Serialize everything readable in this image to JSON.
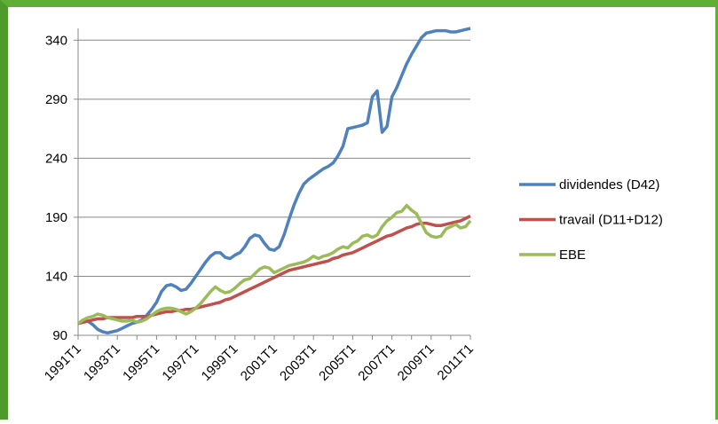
{
  "chart_data": {
    "type": "line",
    "categories": [
      "1991T1",
      null,
      null,
      null,
      null,
      null,
      null,
      null,
      "1993T1",
      null,
      null,
      null,
      null,
      null,
      null,
      null,
      "1995T1",
      null,
      null,
      null,
      null,
      null,
      null,
      null,
      "1997T1",
      null,
      null,
      null,
      null,
      null,
      null,
      null,
      "1999T1",
      null,
      null,
      null,
      null,
      null,
      null,
      null,
      "2001T1",
      null,
      null,
      null,
      null,
      null,
      null,
      null,
      "2003T1",
      null,
      null,
      null,
      null,
      null,
      null,
      null,
      "2005T1",
      null,
      null,
      null,
      null,
      null,
      null,
      null,
      "2007T1",
      null,
      null,
      null,
      null,
      null,
      null,
      null,
      "2009T1",
      null,
      null,
      null,
      null,
      null,
      null,
      null,
      "2011T1"
    ],
    "series": [
      {
        "name": "dividendes (D42)",
        "color": "#4f81bd",
        "values": [
          100,
          101,
          102,
          99,
          95,
          93,
          92,
          93,
          94,
          96,
          98,
          100,
          101,
          103,
          107,
          112,
          118,
          127,
          132,
          133,
          131,
          128,
          129,
          134,
          140,
          146,
          152,
          157,
          160,
          160,
          156,
          155,
          158,
          160,
          165,
          172,
          175,
          174,
          168,
          163,
          162,
          165,
          175,
          188,
          200,
          210,
          218,
          222,
          225,
          228,
          231,
          233,
          236,
          242,
          250,
          265,
          266,
          267,
          268,
          270,
          292,
          297,
          262,
          267,
          292,
          300,
          310,
          320,
          328,
          335,
          342,
          346,
          347,
          348,
          348,
          348,
          347,
          347,
          348,
          349,
          350
        ]
      },
      {
        "name": "travail (D11+D12)",
        "color": "#c0504d",
        "values": [
          100,
          101,
          102,
          103,
          104,
          104,
          105,
          105,
          105,
          105,
          105,
          105,
          106,
          106,
          106,
          107,
          108,
          109,
          110,
          110,
          111,
          111,
          112,
          112,
          113,
          114,
          115,
          116,
          117,
          118,
          120,
          121,
          123,
          125,
          127,
          129,
          131,
          133,
          135,
          137,
          139,
          141,
          143,
          145,
          146,
          147,
          148,
          149,
          150,
          151,
          152,
          153,
          155,
          156,
          158,
          159,
          160,
          162,
          164,
          166,
          168,
          170,
          172,
          174,
          175,
          177,
          179,
          181,
          182,
          184,
          185,
          185,
          184,
          183,
          183,
          184,
          185,
          186,
          187,
          189,
          191
        ]
      },
      {
        "name": "EBE",
        "color": "#9bbb59",
        "values": [
          100,
          103,
          105,
          106,
          108,
          107,
          105,
          104,
          103,
          102,
          102,
          103,
          101,
          102,
          104,
          107,
          110,
          112,
          113,
          113,
          112,
          110,
          108,
          110,
          113,
          117,
          122,
          127,
          131,
          128,
          126,
          127,
          130,
          134,
          137,
          138,
          142,
          146,
          148,
          147,
          143,
          145,
          147,
          149,
          150,
          151,
          152,
          154,
          157,
          155,
          157,
          158,
          160,
          163,
          165,
          164,
          168,
          170,
          174,
          175,
          173,
          175,
          182,
          187,
          190,
          194,
          195,
          200,
          196,
          193,
          185,
          177,
          174,
          173,
          174,
          180,
          182,
          184,
          181,
          182,
          187
        ]
      }
    ],
    "ylim": [
      90,
      350
    ],
    "yticks": [
      90,
      140,
      190,
      240,
      290,
      340
    ],
    "grid": true,
    "legend": "right"
  }
}
